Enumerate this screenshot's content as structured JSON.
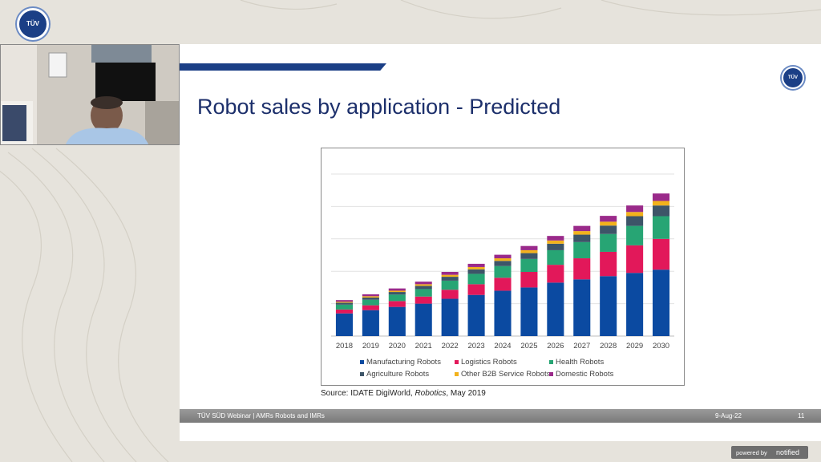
{
  "logo": {
    "text": "TÜV"
  },
  "slide": {
    "title": "Robot sales by application - Predicted",
    "source_prefix": "Source: IDATE DigiWorld, ",
    "source_italic": "Robotics",
    "source_suffix": ", May 2019",
    "footer_left": "TÜV SÜD Webinar | AMRs Robots and IMRs",
    "footer_date": "9-Aug-22",
    "footer_page": "11"
  },
  "powered": {
    "label": "powered by",
    "brand": "notified"
  },
  "colors": {
    "Manufacturing Robots": "#0b4aa1",
    "Logistics Robots": "#e2185a",
    "Health Robots": "#27a574",
    "Agriculture Robots": "#3d5568",
    "Other B2B Service Robots": "#f2b21c",
    "Domestic Robots": "#9a2a8a"
  },
  "chart_data": {
    "type": "bar",
    "stacked": true,
    "categories": [
      "2018",
      "2019",
      "2020",
      "2021",
      "2022",
      "2023",
      "2024",
      "2025",
      "2026",
      "2027",
      "2028",
      "2029",
      "2030"
    ],
    "ylim": [
      0,
      50
    ],
    "grid": true,
    "legend_position": "bottom",
    "series": [
      {
        "name": "Manufacturing Robots",
        "values": [
          7,
          8,
          9,
          10,
          11.5,
          12.7,
          14,
          15,
          16.5,
          17.5,
          18.5,
          19.5,
          20.5
        ]
      },
      {
        "name": "Logistics Robots",
        "values": [
          1.2,
          1.5,
          1.8,
          2.2,
          2.8,
          3.3,
          4,
          4.8,
          5.5,
          6.5,
          7.5,
          8.5,
          9.5
        ]
      },
      {
        "name": "Health Robots",
        "values": [
          1.5,
          1.7,
          2,
          2.3,
          2.8,
          3.2,
          3.6,
          4,
          4.5,
          5,
          5.5,
          6,
          7
        ]
      },
      {
        "name": "Agriculture Robots",
        "values": [
          0.6,
          0.7,
          0.8,
          1,
          1.2,
          1.4,
          1.6,
          1.8,
          2,
          2.3,
          2.6,
          3,
          3.3
        ]
      },
      {
        "name": "Other B2B Service Robots",
        "values": [
          0.3,
          0.4,
          0.4,
          0.5,
          0.6,
          0.7,
          0.8,
          0.9,
          1,
          1.1,
          1.2,
          1.3,
          1.4
        ]
      },
      {
        "name": "Domestic Robots",
        "values": [
          0.5,
          0.6,
          0.7,
          0.8,
          0.9,
          1,
          1.1,
          1.3,
          1.4,
          1.6,
          1.8,
          2,
          2.3
        ]
      }
    ]
  }
}
